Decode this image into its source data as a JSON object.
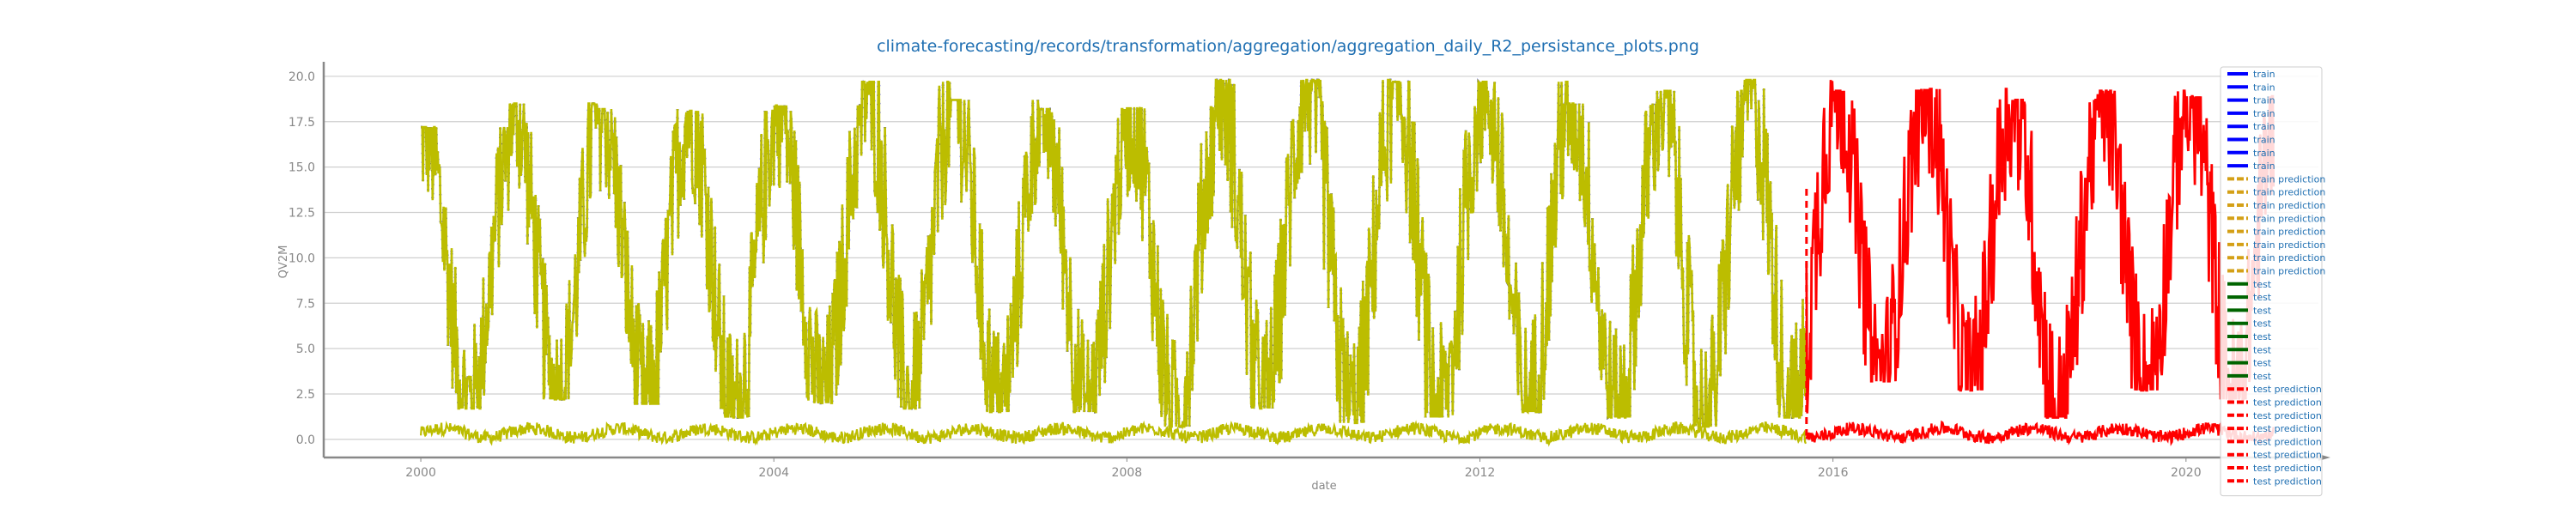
{
  "chart_data": {
    "type": "line",
    "title": "climate-forecasting/records/transformation/aggregation/aggregation_daily_R2_persistance_plots.png",
    "xlabel": "date",
    "ylabel": "QV2M",
    "xlim": [
      1998.9,
      2021.5
    ],
    "ylim": [
      -1.0,
      20.8
    ],
    "x_ticks": [
      2000,
      2004,
      2008,
      2012,
      2016,
      2020
    ],
    "x_tick_labels": [
      "2000",
      "2004",
      "2008",
      "2012",
      "2016",
      "2020"
    ],
    "y_ticks": [
      0.0,
      2.5,
      5.0,
      7.5,
      10.0,
      12.5,
      15.0,
      17.5,
      20.0
    ],
    "y_tick_labels": [
      "0.0",
      "2.5",
      "5.0",
      "7.5",
      "10.0",
      "12.5",
      "15.0",
      "17.5",
      "20.0"
    ],
    "grid": true,
    "legend_position": "right",
    "train_end": 2015.7,
    "test_end": 2021.0,
    "annual_cycle": {
      "x": [
        2000,
        2001,
        2002,
        2003,
        2004,
        2005,
        2006,
        2007,
        2008,
        2009,
        2010,
        2011,
        2012,
        2013,
        2014,
        2015,
        2016,
        2017,
        2018,
        2019,
        2020
      ],
      "peak": [
        17.0,
        18.3,
        18.0,
        17.9,
        18.2,
        19.5,
        18.5,
        18.0,
        18.1,
        19.6,
        19.6,
        19.5,
        19.5,
        18.3,
        19.0,
        19.6,
        19.0,
        19.1,
        18.5,
        19.0,
        18.7
      ],
      "trough": [
        2.0,
        2.5,
        2.2,
        1.5,
        2.3,
        2.0,
        1.8,
        1.8,
        1.0,
        2.0,
        1.2,
        1.5,
        1.8,
        1.5,
        1.0,
        1.5,
        3.5,
        3.0,
        1.5,
        3.0,
        2.5
      ]
    },
    "series": [
      {
        "name": "train",
        "color": "#0000ff",
        "style": "solid"
      },
      {
        "name": "train prediction",
        "color": "#bcbd00",
        "style": "dashed"
      },
      {
        "name": "test",
        "color": "#006400",
        "style": "solid"
      },
      {
        "name": "test prediction",
        "color": "#ff0000",
        "style": "dashed"
      }
    ],
    "legend": [
      {
        "label": "train",
        "color": "#0000ff",
        "style": "solid"
      },
      {
        "label": "train",
        "color": "#0000ff",
        "style": "solid"
      },
      {
        "label": "train",
        "color": "#0000ff",
        "style": "solid"
      },
      {
        "label": "train",
        "color": "#0000ff",
        "style": "solid"
      },
      {
        "label": "train",
        "color": "#0000ff",
        "style": "solid"
      },
      {
        "label": "train",
        "color": "#0000ff",
        "style": "solid"
      },
      {
        "label": "train",
        "color": "#0000ff",
        "style": "solid"
      },
      {
        "label": "train",
        "color": "#0000ff",
        "style": "solid"
      },
      {
        "label": "train prediction",
        "color": "#d4a017",
        "style": "dashed"
      },
      {
        "label": "train prediction",
        "color": "#d4a017",
        "style": "dashed"
      },
      {
        "label": "train prediction",
        "color": "#d4a017",
        "style": "dashed"
      },
      {
        "label": "train prediction",
        "color": "#d4a017",
        "style": "dashed"
      },
      {
        "label": "train prediction",
        "color": "#d4a017",
        "style": "dashed"
      },
      {
        "label": "train prediction",
        "color": "#d4a017",
        "style": "dashed"
      },
      {
        "label": "train prediction",
        "color": "#d4a017",
        "style": "dashed"
      },
      {
        "label": "train prediction",
        "color": "#d4a017",
        "style": "dashed"
      },
      {
        "label": "test",
        "color": "#006400",
        "style": "solid"
      },
      {
        "label": "test",
        "color": "#006400",
        "style": "solid"
      },
      {
        "label": "test",
        "color": "#006400",
        "style": "solid"
      },
      {
        "label": "test",
        "color": "#006400",
        "style": "solid"
      },
      {
        "label": "test",
        "color": "#006400",
        "style": "solid"
      },
      {
        "label": "test",
        "color": "#006400",
        "style": "solid"
      },
      {
        "label": "test",
        "color": "#006400",
        "style": "solid"
      },
      {
        "label": "test",
        "color": "#006400",
        "style": "solid"
      },
      {
        "label": "test prediction",
        "color": "#ff0000",
        "style": "dashed"
      },
      {
        "label": "test prediction",
        "color": "#ff0000",
        "style": "dashed"
      },
      {
        "label": "test prediction",
        "color": "#ff0000",
        "style": "dashed"
      },
      {
        "label": "test prediction",
        "color": "#ff0000",
        "style": "dashed"
      },
      {
        "label": "test prediction",
        "color": "#ff0000",
        "style": "dashed"
      },
      {
        "label": "test prediction",
        "color": "#ff0000",
        "style": "dashed"
      },
      {
        "label": "test prediction",
        "color": "#ff0000",
        "style": "dashed"
      },
      {
        "label": "test prediction",
        "color": "#ff0000",
        "style": "dashed"
      }
    ]
  }
}
